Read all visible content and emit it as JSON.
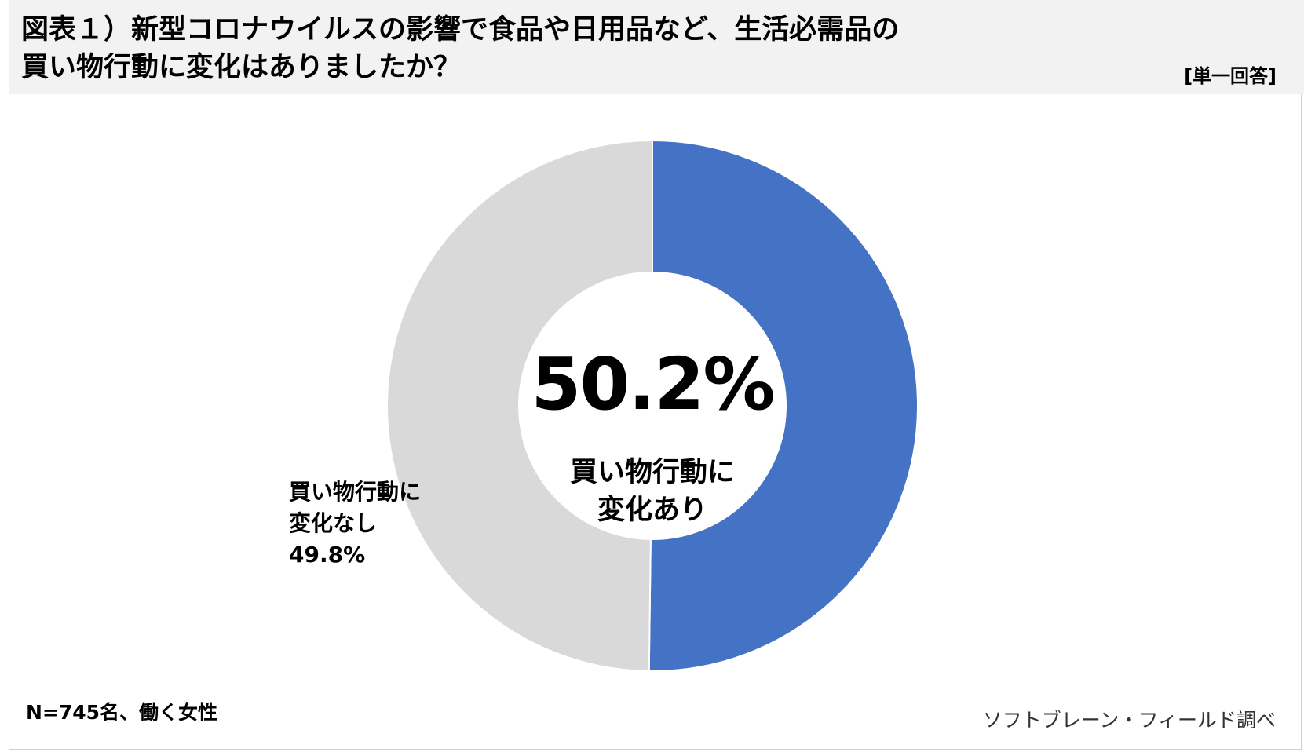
{
  "title_line1": "図表１）新型コロナウイルスの影響で食品や日用品など、生活必需品の",
  "title_line2": "買い物行動に変化はありましたか？",
  "answer_type": "[単一回答]",
  "center": {
    "value": "50.2%",
    "label_line1": "買い物行動に",
    "label_line2": "変化あり"
  },
  "slice_label": {
    "line1": "買い物行動に",
    "line2": "変化なし",
    "value": "49.8%"
  },
  "footnote": "N=745名、働く女性",
  "source": "ソフトブレーン・フィールド調べ",
  "colors": {
    "changed": "#4472c4",
    "unchanged": "#d9d9d9",
    "header_bg": "#f2f2f2"
  },
  "chart_data": {
    "type": "pie",
    "style": "donut",
    "categories": [
      "買い物行動に変化あり",
      "買い物行動に変化なし"
    ],
    "values": [
      50.2,
      49.8
    ],
    "unit": "%",
    "start": "12 o'clock",
    "direction": "clockwise"
  }
}
